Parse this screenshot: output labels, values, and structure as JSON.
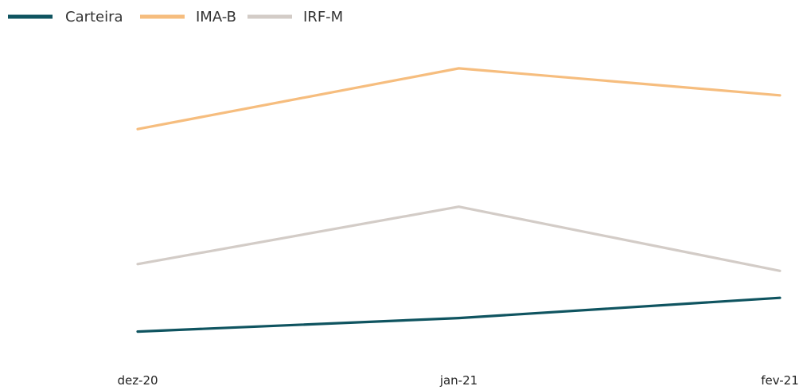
{
  "chart_data": {
    "type": "line",
    "title": "",
    "xlabel": "",
    "ylabel": "",
    "categories": [
      "dez-20",
      "jan-21",
      "fev-21"
    ],
    "ylim": [
      0,
      100
    ],
    "grid": false,
    "legend_position": "top-left",
    "series": [
      {
        "name": "Carteira",
        "color": "#0f5460",
        "values": [
          10,
          14,
          20
        ]
      },
      {
        "name": "IMA-B",
        "color": "#f6bd7e",
        "values": [
          70,
          88,
          80
        ]
      },
      {
        "name": "IRF-M",
        "color": "#d3ccc7",
        "values": [
          30,
          47,
          28
        ]
      }
    ]
  }
}
